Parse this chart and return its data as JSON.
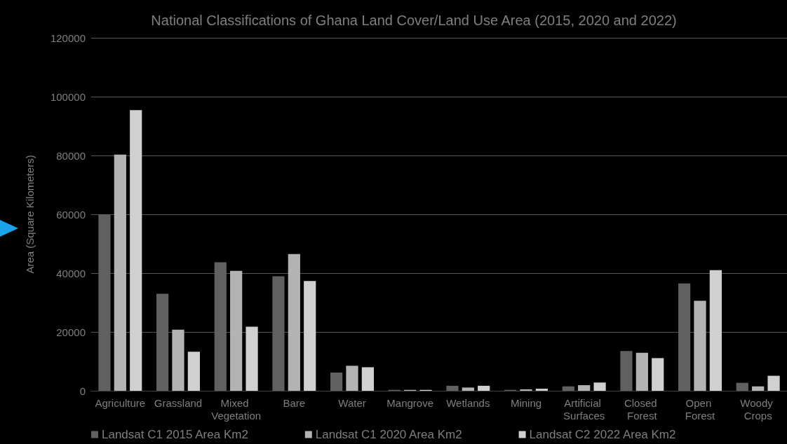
{
  "chart_data": {
    "type": "bar",
    "title": "National Classifications of Ghana Land Cover/Land Use Area (2015, 2020 and 2022)",
    "ylabel": "Area (Square Kilometers)",
    "categories": [
      "Agriculture",
      "Grassland",
      "Mixed Vegetation",
      "Bare",
      "Water",
      "Mangrove",
      "Wetlands",
      "Mining",
      "Artificial Surfaces",
      "Closed Forest",
      "Open Forest",
      "Woody Crops"
    ],
    "series": [
      {
        "name": "Landsat C1 2015 Area Km2",
        "color": "#606060",
        "values": [
          60000,
          33000,
          43700,
          38900,
          6200,
          300,
          1700,
          300,
          1500,
          13500,
          36500,
          2700
        ]
      },
      {
        "name": "Landsat C1 2020 Area Km2",
        "color": "#b3b3b3",
        "values": [
          80300,
          20800,
          40800,
          46500,
          8500,
          300,
          1100,
          500,
          1900,
          12900,
          30600,
          1500
        ]
      },
      {
        "name": "Landsat C2 2022 Area Km2",
        "color": "#d0d0d0",
        "values": [
          95400,
          13300,
          21800,
          37300,
          8000,
          300,
          1700,
          700,
          2800,
          11100,
          41000,
          5100
        ]
      }
    ],
    "ylim": [
      0,
      120000
    ],
    "yticks": [
      0,
      20000,
      40000,
      60000,
      80000,
      100000,
      120000
    ],
    "grid": "y",
    "legend": "bottom left"
  }
}
